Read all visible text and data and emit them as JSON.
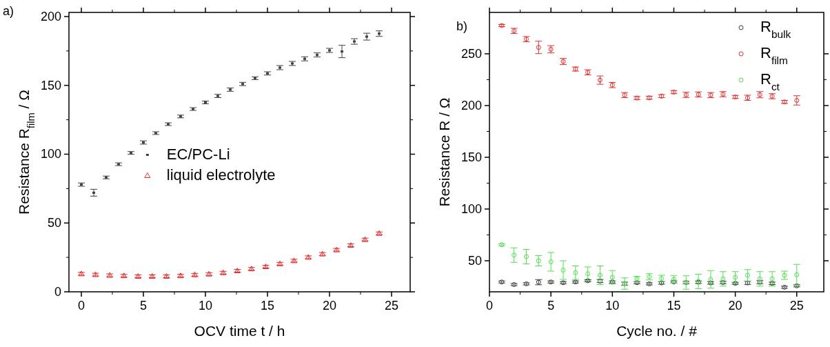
{
  "chart_data": [
    {
      "type": "scatter",
      "xlabel": "OCV time t / h",
      "ylabel": "Resistance R$_{film}$ / Ω",
      "xlim": [
        -1,
        26.5
      ],
      "ylim": [
        0,
        203
      ],
      "xticks": [
        0,
        5,
        10,
        15,
        20,
        25
      ],
      "yticks": [
        0,
        50,
        100,
        150,
        200
      ],
      "grid": false,
      "legend": "center",
      "annotations": [
        "a)"
      ],
      "series": [
        {
          "name": "EC/PC-Li",
          "color": "#404040",
          "marker": "square",
          "x": [
            0,
            1,
            2,
            3,
            4,
            5,
            6,
            7,
            8,
            9,
            10,
            11,
            12,
            13,
            14,
            15,
            16,
            17,
            18,
            19,
            20,
            21,
            22,
            23,
            24
          ],
          "values": [
            77.9,
            72,
            83.1,
            92.7,
            100.9,
            108.5,
            115.3,
            121.8,
            127.4,
            132.8,
            137.6,
            142.3,
            146.9,
            151,
            155.2,
            158.7,
            162.9,
            165.9,
            169.3,
            172.1,
            175.4,
            174.6,
            181.9,
            185.4,
            187.6
          ],
          "errors": [
            1.2,
            2.5,
            1,
            1,
            1,
            1.2,
            1,
            1,
            1,
            1,
            1,
            1.2,
            1.2,
            1.2,
            1,
            1.2,
            1.5,
            1.5,
            1.5,
            1.5,
            1.5,
            4.5,
            2,
            2.5,
            2
          ]
        },
        {
          "name": "liquid electrolyte",
          "color": "#e03030",
          "marker": "triangle",
          "x": [
            0,
            1.14,
            2.29,
            3.43,
            4.57,
            5.71,
            6.86,
            8,
            9.14,
            10.29,
            11.43,
            12.57,
            13.71,
            14.86,
            16,
            17.14,
            18.29,
            19.43,
            20.57,
            21.71,
            22.86,
            24
          ],
          "values": [
            13.1,
            12.5,
            12,
            11.7,
            11.3,
            11.3,
            11.3,
            11.7,
            12.4,
            12.9,
            13.9,
            15.3,
            16.7,
            18.3,
            20.4,
            22.6,
            25.1,
            27.5,
            30.5,
            33.8,
            38,
            42.5
          ],
          "errors": [
            1,
            1,
            1,
            1,
            1,
            1,
            1,
            1,
            1,
            1,
            1,
            1,
            1,
            1,
            1,
            1,
            1,
            1,
            1,
            1,
            1,
            1
          ]
        }
      ]
    },
    {
      "type": "scatter",
      "xlabel": "Cycle no. / #",
      "ylabel": "Resistance R / Ω",
      "xlim": [
        0,
        27.2
      ],
      "ylim": [
        20,
        290
      ],
      "xticks": [
        0,
        5,
        10,
        15,
        20,
        25
      ],
      "yticks": [
        50,
        100,
        150,
        200,
        250
      ],
      "grid": false,
      "legend": "top right",
      "marker": "circle",
      "annotations": [
        "b)"
      ],
      "x": [
        1,
        2,
        3,
        4,
        5,
        6,
        7,
        8,
        9,
        10,
        11,
        12,
        13,
        14,
        15,
        16,
        17,
        18,
        19,
        20,
        21,
        22,
        23,
        24,
        25
      ],
      "series": [
        {
          "name": "R$_{bulk}$",
          "color": "#404040",
          "values": [
            29.5,
            27,
            27.7,
            29.3,
            29.5,
            28.8,
            29.5,
            30.7,
            30.4,
            29.5,
            27.9,
            28.8,
            27.7,
            28.6,
            29.5,
            29,
            29.3,
            28.6,
            29,
            28.2,
            28.6,
            29.3,
            28.2,
            24.4,
            25.8
          ],
          "errors": [
            1,
            1,
            1,
            2.5,
            1,
            1,
            1,
            1,
            1.5,
            1,
            1.5,
            1,
            1,
            1.2,
            1,
            1.2,
            1.2,
            1.2,
            1.2,
            1,
            1.5,
            1.5,
            1.2,
            1,
            1
          ]
        },
        {
          "name": "R$_{film}$",
          "color": "#e03030",
          "values": [
            277.3,
            272.2,
            264.2,
            256.2,
            254.4,
            242.6,
            235.3,
            232.1,
            224.6,
            219.8,
            210.1,
            207.3,
            207.5,
            209.1,
            213,
            210.3,
            210.7,
            210.1,
            211,
            208.3,
            207.5,
            210.5,
            209,
            203.5,
            205
          ],
          "errors": [
            1,
            2.5,
            2.5,
            6,
            3.5,
            3,
            2,
            2.5,
            4,
            2.5,
            2.5,
            1.5,
            1.5,
            1.5,
            1.5,
            2.5,
            2.5,
            2.5,
            2.5,
            1.5,
            2.5,
            3,
            2.5,
            1.5,
            4.5
          ]
        },
        {
          "name": "R$_{ct}$",
          "color": "#50e050",
          "values": [
            65.5,
            55.5,
            54,
            50,
            49,
            41,
            38.5,
            37.5,
            36,
            34,
            28,
            32.5,
            34.5,
            33,
            32,
            29,
            30,
            32,
            32.5,
            34,
            36,
            32.5,
            32.5,
            36,
            36.5
          ],
          "errors": [
            1,
            7,
            7,
            5,
            9,
            9,
            6.5,
            6.5,
            9,
            6.5,
            5.5,
            2.5,
            3,
            3,
            3.5,
            6.5,
            7,
            8.5,
            7,
            5.5,
            5.5,
            7,
            7,
            4,
            10
          ]
        }
      ]
    }
  ]
}
